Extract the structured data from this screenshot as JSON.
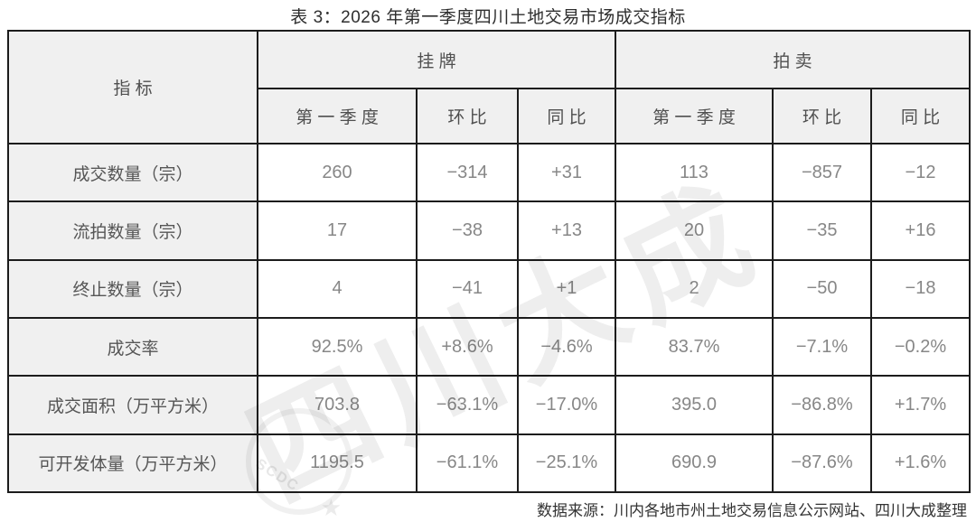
{
  "title": "表 3：2026 年第一季度四川土地交易市场成交指标",
  "table": {
    "corner_header": "指 标",
    "groups": [
      {
        "label": "挂 牌",
        "columns": [
          "第 一 季 度",
          "环 比",
          "同 比"
        ]
      },
      {
        "label": "拍 卖",
        "columns": [
          "第 一 季 度",
          "环 比",
          "同 比"
        ]
      }
    ],
    "rows": [
      {
        "label": "成交数量（宗）",
        "values": [
          "260",
          "−314",
          "+31",
          "113",
          "−857",
          "−12"
        ]
      },
      {
        "label": "流拍数量（宗）",
        "values": [
          "17",
          "−38",
          "+13",
          "20",
          "−35",
          "+16"
        ]
      },
      {
        "label": "终止数量（宗）",
        "values": [
          "4",
          "−41",
          "+1",
          "2",
          "−50",
          "−18"
        ]
      },
      {
        "label": "成交率",
        "values": [
          "92.5%",
          "+8.6%",
          "−4.6%",
          "83.7%",
          "−7.1%",
          "−0.2%"
        ]
      },
      {
        "label": "成交面积（万平方米）",
        "values": [
          "703.8",
          "−63.1%",
          "−17.0%",
          "395.0",
          "−86.8%",
          "+1.7%"
        ]
      },
      {
        "label": "可开发体量（万平方米）",
        "values": [
          "1195.5",
          "−61.1%",
          "−25.1%",
          "690.9",
          "−87.6%",
          "+1.6%"
        ]
      }
    ]
  },
  "footer": {
    "source": "数据来源：川内各地市州土地交易信息公示网站、四川大成整理"
  },
  "watermark": {
    "text": "四川大成",
    "seal_text": "SCDC",
    "seal_star": "★"
  },
  "colors": {
    "border": "#1c1c1c",
    "header_bg": "#f0f0f0",
    "header_text": "#4f4f4f",
    "row_label_text": "#565656",
    "data_text": "#878787",
    "title_text": "#2e2e2e",
    "source_text": "#333333"
  }
}
